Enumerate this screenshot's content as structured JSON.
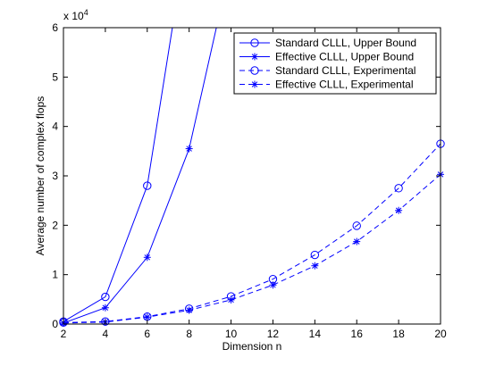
{
  "chart_data": {
    "type": "line",
    "xlabel": "Dimension n",
    "ylabel": "Average number of complex flops",
    "y_exponent_label": "x 10",
    "y_exponent_power": "4",
    "xlim": [
      2,
      20
    ],
    "ylim": [
      0,
      6
    ],
    "x_ticks": [
      2,
      4,
      6,
      8,
      10,
      12,
      14,
      16,
      18,
      20
    ],
    "y_ticks": [
      0,
      1,
      2,
      3,
      4,
      5,
      6
    ],
    "grid": false,
    "legend_position": "top-right",
    "series_color": "#0000ff",
    "series": [
      {
        "name": "Standard CLLL, Upper Bound",
        "marker": "circle",
        "line_style": "solid",
        "x": [
          2,
          4,
          6,
          7.2
        ],
        "y": [
          0.05,
          0.55,
          2.8,
          6.0
        ],
        "marker_x": [
          2,
          4,
          6
        ],
        "marker_y": [
          0.05,
          0.55,
          2.8
        ]
      },
      {
        "name": "Effective CLLL, Upper Bound",
        "marker": "star",
        "line_style": "solid",
        "x": [
          2,
          4,
          6,
          8,
          9.3
        ],
        "y": [
          0.02,
          0.33,
          1.35,
          3.55,
          6.0
        ],
        "marker_x": [
          2,
          4,
          6,
          8
        ],
        "marker_y": [
          0.02,
          0.33,
          1.35,
          3.55
        ]
      },
      {
        "name": "Standard CLLL, Experimental",
        "marker": "circle",
        "line_style": "dashed",
        "x": [
          2,
          4,
          6,
          8,
          10,
          12,
          14,
          16,
          18,
          20
        ],
        "y": [
          0.03,
          0.05,
          0.15,
          0.31,
          0.56,
          0.91,
          1.4,
          1.99,
          2.75,
          3.65
        ],
        "marker_x": [
          2,
          4,
          6,
          8,
          10,
          12,
          14,
          16,
          18,
          20
        ],
        "marker_y": [
          0.03,
          0.05,
          0.15,
          0.31,
          0.56,
          0.91,
          1.4,
          1.99,
          2.75,
          3.65
        ]
      },
      {
        "name": "Effective CLLL, Experimental",
        "marker": "star",
        "line_style": "dashed",
        "x": [
          2,
          4,
          6,
          8,
          10,
          12,
          14,
          16,
          18,
          20
        ],
        "y": [
          0.02,
          0.04,
          0.14,
          0.28,
          0.49,
          0.79,
          1.18,
          1.67,
          2.3,
          3.03
        ],
        "marker_x": [
          2,
          4,
          6,
          8,
          10,
          12,
          14,
          16,
          18,
          20
        ],
        "marker_y": [
          0.02,
          0.04,
          0.14,
          0.28,
          0.49,
          0.79,
          1.18,
          1.67,
          2.3,
          3.03
        ]
      }
    ]
  }
}
